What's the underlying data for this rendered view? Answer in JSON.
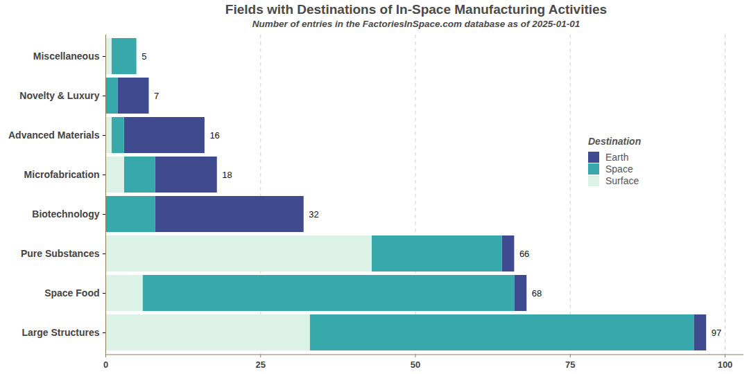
{
  "chart_data": {
    "type": "bar",
    "title": "Fields with Destinations of In-Space Manufacturing Activities",
    "subtitle": "Number of entries in the FactoriesInSpace.com database as of 2025-01-01",
    "orientation": "horizontal",
    "stacked": true,
    "categories": [
      "Miscellaneous",
      "Novelty & Luxury",
      "Advanced Materials",
      "Microfabrication",
      "Biotechnology",
      "Pure Substances",
      "Space Food",
      "Large Structures"
    ],
    "series": [
      {
        "name": "Earth",
        "color": "#3f4a8f",
        "values": [
          0,
          5,
          13,
          10,
          24,
          2,
          2,
          2
        ]
      },
      {
        "name": "Space",
        "color": "#38a9ab",
        "values": [
          4,
          2,
          2,
          5,
          8,
          21,
          60,
          62
        ]
      },
      {
        "name": "Surface",
        "color": "#dcf2e6",
        "values": [
          1,
          0,
          1,
          3,
          0,
          43,
          6,
          33
        ]
      }
    ],
    "totals": [
      5,
      7,
      16,
      18,
      32,
      66,
      68,
      97
    ],
    "legend_title": "Destination",
    "legend": "right",
    "xlim": [
      0,
      100
    ],
    "xticks": [
      0,
      25,
      50,
      75,
      100
    ],
    "grid": true
  }
}
